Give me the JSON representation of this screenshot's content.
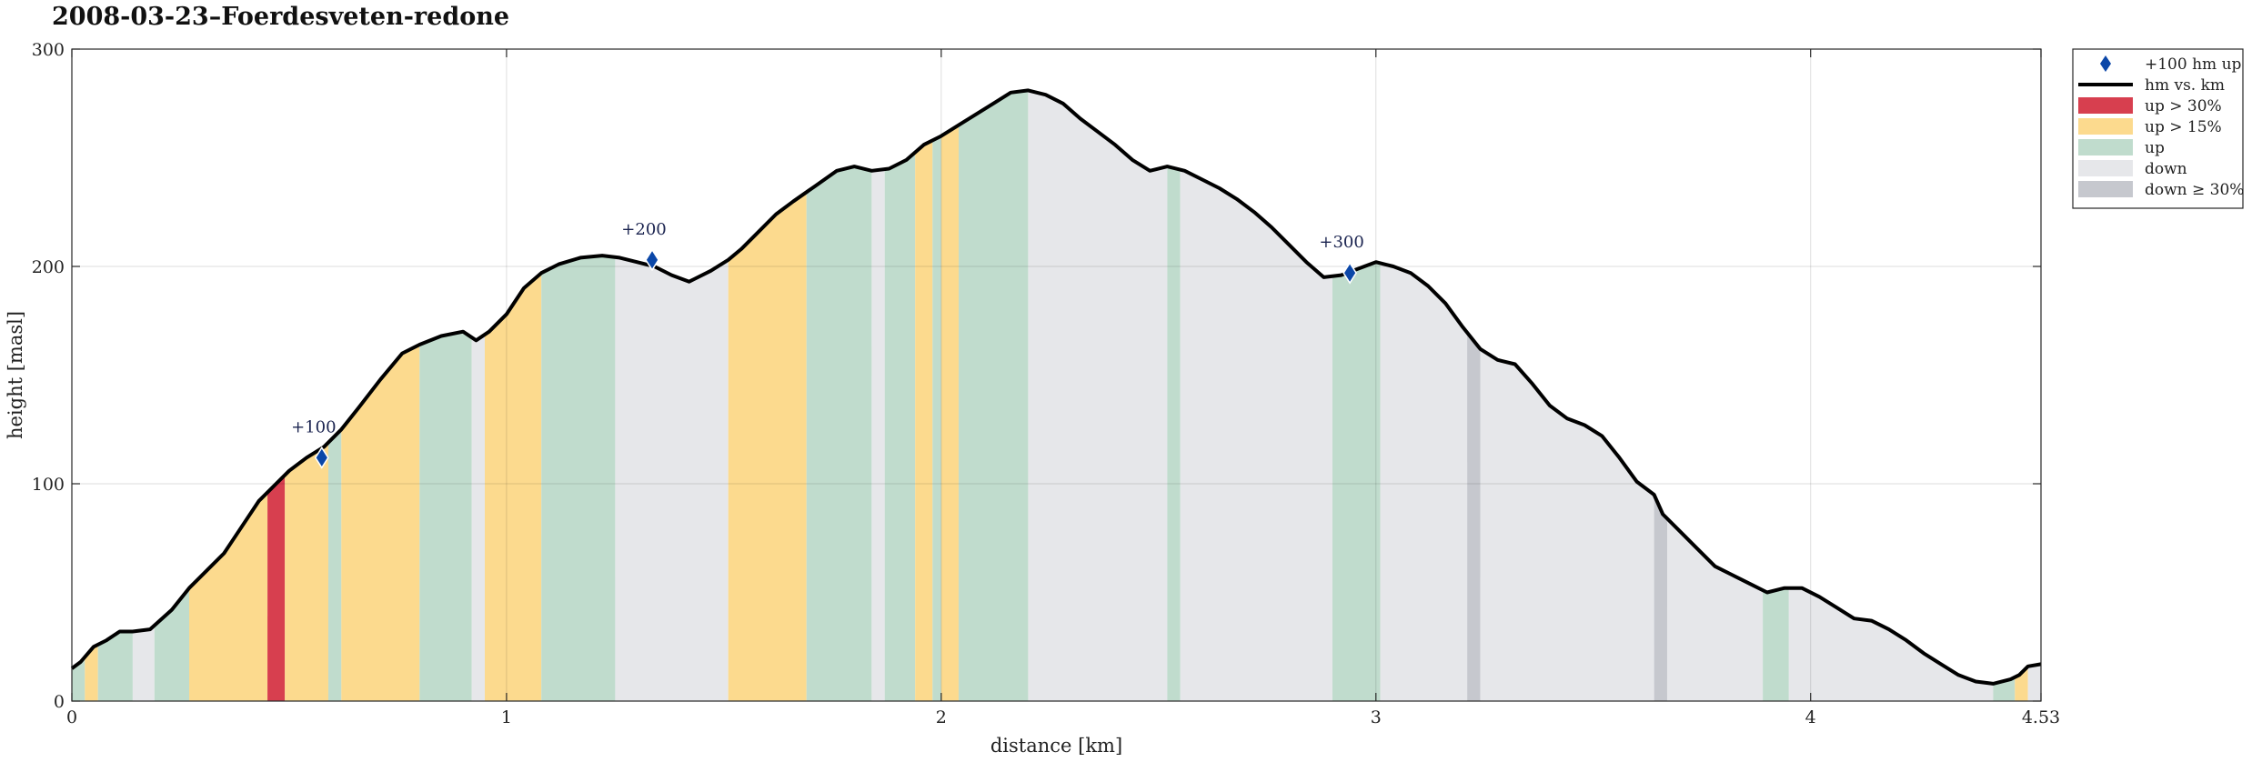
{
  "chart_data": {
    "type": "area",
    "title": "2008-03-23–Foerdesveten-redone",
    "xlabel": "distance [km]",
    "ylabel": "height [masl]",
    "xlim": [
      0,
      4.53
    ],
    "ylim": [
      0,
      300
    ],
    "xticks": [
      "0",
      "1",
      "2",
      "3",
      "4",
      "4.53"
    ],
    "xtick_values": [
      0,
      1,
      2,
      3,
      4,
      4.53
    ],
    "yticks": [
      "0",
      "100",
      "200",
      "300"
    ],
    "ytick_values": [
      0,
      100,
      200,
      300
    ],
    "grid": true,
    "legend_position": "outside top-right",
    "legend": [
      {
        "label": "+100 hm up",
        "kind": "marker",
        "color": "#0b47a8"
      },
      {
        "label": "hm vs. km",
        "kind": "line",
        "color": "#000000"
      },
      {
        "label": "up > 30%",
        "kind": "patch",
        "color": "#d73f4f"
      },
      {
        "label": "up > 15%",
        "kind": "patch",
        "color": "#fcda8e"
      },
      {
        "label": "up",
        "kind": "patch",
        "color": "#c0dccd"
      },
      {
        "label": "down",
        "kind": "patch",
        "color": "#e6e7ea"
      },
      {
        "label": "down ≥ 30%",
        "kind": "patch",
        "color": "#c6c8ce"
      }
    ],
    "profile": {
      "x": [
        0,
        0.02,
        0.05,
        0.08,
        0.11,
        0.14,
        0.18,
        0.23,
        0.27,
        0.31,
        0.35,
        0.39,
        0.43,
        0.47,
        0.5,
        0.54,
        0.58,
        0.62,
        0.66,
        0.71,
        0.76,
        0.8,
        0.85,
        0.9,
        0.93,
        0.96,
        1.0,
        1.04,
        1.08,
        1.12,
        1.17,
        1.22,
        1.26,
        1.3,
        1.34,
        1.38,
        1.42,
        1.47,
        1.51,
        1.54,
        1.58,
        1.62,
        1.66,
        1.71,
        1.76,
        1.8,
        1.84,
        1.88,
        1.92,
        1.96,
        2.0,
        2.04,
        2.08,
        2.12,
        2.16,
        2.2,
        2.24,
        2.28,
        2.32,
        2.36,
        2.4,
        2.44,
        2.48,
        2.52,
        2.56,
        2.6,
        2.64,
        2.68,
        2.72,
        2.76,
        2.8,
        2.84,
        2.88,
        2.92,
        2.96,
        3.0,
        3.04,
        3.08,
        3.12,
        3.16,
        3.2,
        3.24,
        3.28,
        3.32,
        3.36,
        3.4,
        3.44,
        3.48,
        3.52,
        3.56,
        3.6,
        3.64,
        3.66,
        3.7,
        3.74,
        3.78,
        3.82,
        3.86,
        3.9,
        3.94,
        3.98,
        4.02,
        4.06,
        4.1,
        4.14,
        4.18,
        4.22,
        4.26,
        4.3,
        4.34,
        4.38,
        4.42,
        4.46,
        4.48,
        4.5,
        4.53
      ],
      "y": [
        15,
        18,
        25,
        28,
        32,
        32,
        33,
        42,
        52,
        60,
        68,
        80,
        92,
        100,
        106,
        112,
        117,
        125,
        135,
        148,
        160,
        164,
        168,
        170,
        166,
        170,
        178,
        190,
        197,
        201,
        204,
        205,
        204,
        202,
        200,
        196,
        193,
        198,
        203,
        208,
        216,
        224,
        230,
        237,
        244,
        246,
        244,
        245,
        249,
        256,
        260,
        265,
        270,
        275,
        280,
        281,
        279,
        275,
        268,
        262,
        256,
        249,
        244,
        246,
        244,
        240,
        236,
        231,
        225,
        218,
        210,
        202,
        195,
        196,
        199,
        202,
        200,
        197,
        191,
        183,
        172,
        162,
        157,
        155,
        146,
        136,
        130,
        127,
        122,
        112,
        101,
        95,
        86,
        78,
        70,
        62,
        58,
        54,
        50,
        52,
        52,
        48,
        43,
        38,
        37,
        33,
        28,
        22,
        17,
        12,
        9,
        8,
        10,
        12,
        16,
        17
      ]
    },
    "segments": [
      {
        "from": 0.0,
        "to": 0.03,
        "kind": "up"
      },
      {
        "from": 0.03,
        "to": 0.06,
        "kind": "up > 15%"
      },
      {
        "from": 0.06,
        "to": 0.14,
        "kind": "up"
      },
      {
        "from": 0.14,
        "to": 0.19,
        "kind": "down"
      },
      {
        "from": 0.19,
        "to": 0.27,
        "kind": "up"
      },
      {
        "from": 0.27,
        "to": 0.45,
        "kind": "up > 15%"
      },
      {
        "from": 0.45,
        "to": 0.49,
        "kind": "up > 30%"
      },
      {
        "from": 0.49,
        "to": 0.59,
        "kind": "up > 15%"
      },
      {
        "from": 0.59,
        "to": 0.62,
        "kind": "up"
      },
      {
        "from": 0.62,
        "to": 0.8,
        "kind": "up > 15%"
      },
      {
        "from": 0.8,
        "to": 0.92,
        "kind": "up"
      },
      {
        "from": 0.92,
        "to": 0.95,
        "kind": "down"
      },
      {
        "from": 0.95,
        "to": 1.08,
        "kind": "up > 15%"
      },
      {
        "from": 1.08,
        "to": 1.25,
        "kind": "up"
      },
      {
        "from": 1.25,
        "to": 1.51,
        "kind": "down"
      },
      {
        "from": 1.51,
        "to": 1.69,
        "kind": "up > 15%"
      },
      {
        "from": 1.69,
        "to": 1.84,
        "kind": "up"
      },
      {
        "from": 1.84,
        "to": 1.87,
        "kind": "down"
      },
      {
        "from": 1.87,
        "to": 1.94,
        "kind": "up"
      },
      {
        "from": 1.94,
        "to": 1.98,
        "kind": "up > 15%"
      },
      {
        "from": 1.98,
        "to": 2.0,
        "kind": "up"
      },
      {
        "from": 2.0,
        "to": 2.04,
        "kind": "up > 15%"
      },
      {
        "from": 2.04,
        "to": 2.2,
        "kind": "up"
      },
      {
        "from": 2.2,
        "to": 2.52,
        "kind": "down"
      },
      {
        "from": 2.52,
        "to": 2.55,
        "kind": "up"
      },
      {
        "from": 2.55,
        "to": 2.9,
        "kind": "down"
      },
      {
        "from": 2.9,
        "to": 3.01,
        "kind": "up"
      },
      {
        "from": 3.01,
        "to": 3.21,
        "kind": "down"
      },
      {
        "from": 3.21,
        "to": 3.24,
        "kind": "down ≥ 30%"
      },
      {
        "from": 3.24,
        "to": 3.64,
        "kind": "down"
      },
      {
        "from": 3.64,
        "to": 3.67,
        "kind": "down ≥ 30%"
      },
      {
        "from": 3.67,
        "to": 3.89,
        "kind": "down"
      },
      {
        "from": 3.89,
        "to": 3.95,
        "kind": "up"
      },
      {
        "from": 3.95,
        "to": 4.42,
        "kind": "down"
      },
      {
        "from": 4.42,
        "to": 4.47,
        "kind": "up"
      },
      {
        "from": 4.47,
        "to": 4.5,
        "kind": "up > 15%"
      },
      {
        "from": 4.5,
        "to": 4.53,
        "kind": "down"
      }
    ],
    "markers": [
      {
        "x": 0.575,
        "y": 112,
        "label": "+100"
      },
      {
        "x": 1.335,
        "y": 203,
        "label": "+200"
      },
      {
        "x": 2.94,
        "y": 197,
        "label": "+300"
      }
    ]
  }
}
